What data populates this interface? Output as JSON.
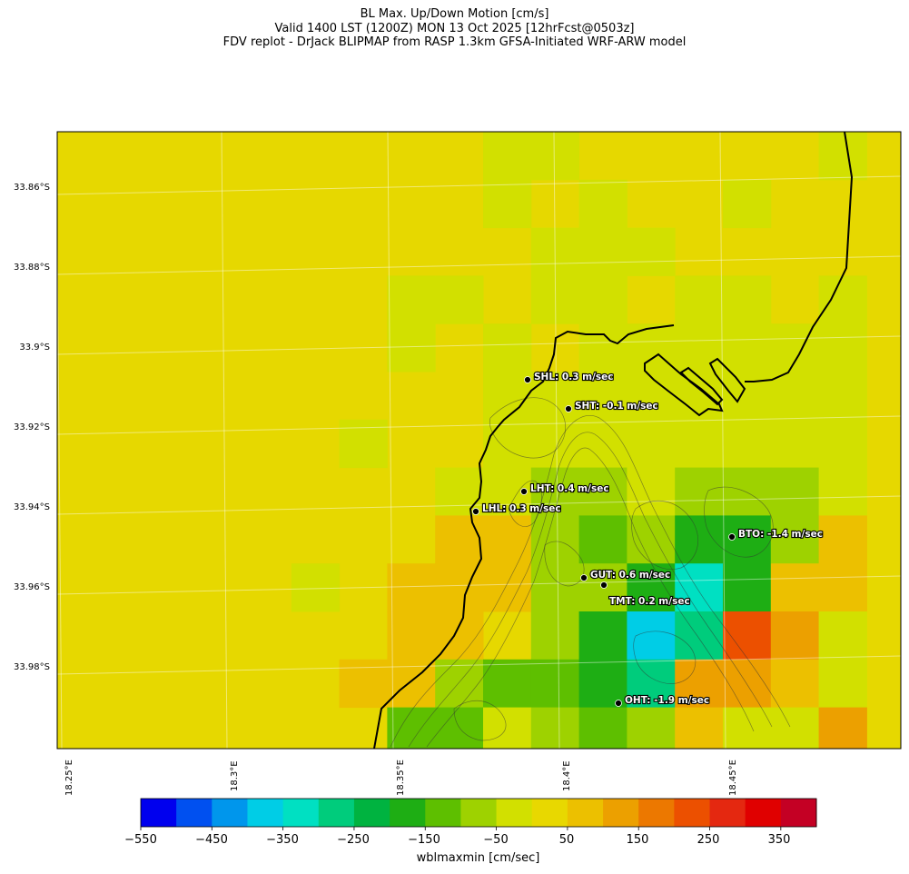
{
  "title": {
    "line1": "BL Max. Up/Down Motion [cm/s]",
    "line2": "Valid 1400 LST (1200Z) MON 13 Oct 2025 [12hrFcst@0503z]",
    "line3": "FDV replot - DrJack BLIPMAP from RASP 1.3km GFSA-Initiated WRF-ARW model"
  },
  "latitude_labels": [
    "33.86°S",
    "33.88°S",
    "33.9°S",
    "33.92°S",
    "33.94°S",
    "33.96°S",
    "33.98°S"
  ],
  "longitude_labels": [
    "18.25°E",
    "18.3°E",
    "18.35°E",
    "18.4°E",
    "18.45°E"
  ],
  "stations": [
    {
      "id": "SHL",
      "label": "SHL: 0.3 m/sec"
    },
    {
      "id": "SHT",
      "label": "SHT: -0.1 m/sec"
    },
    {
      "id": "LHT",
      "label": "LHT: 0.4 m/sec"
    },
    {
      "id": "LHL",
      "label": "LHL: 0.3 m/sec"
    },
    {
      "id": "BTO",
      "label": "BTO: -1.4 m/sec"
    },
    {
      "id": "GUT",
      "label": "GUT: 0.6 m/sec"
    },
    {
      "id": "TMT",
      "label": "TMT: 0.2 m/sec"
    },
    {
      "id": "OHT",
      "label": "OHT: -1.9 m/sec"
    }
  ],
  "colorbar": {
    "label": "wblmaxmin [cm/sec]",
    "tick_labels": [
      "−550",
      "−450",
      "−350",
      "−250",
      "−150",
      "−50",
      "50",
      "150",
      "250",
      "350"
    ],
    "colors": [
      "#0000ee",
      "#0050f0",
      "#0096ec",
      "#00cde6",
      "#00e0c2",
      "#00cc7c",
      "#00b340",
      "#1eae14",
      "#5ebf00",
      "#9ed200",
      "#d2e000",
      "#e8d800",
      "#ecc000",
      "#eca000",
      "#ec7800",
      "#ec5000",
      "#e42810",
      "#e00000",
      "#c40024"
    ]
  },
  "map": {
    "background_color": "#e6d800",
    "cells": [
      {
        "row": 0,
        "col": 10,
        "color": "#d2e000"
      },
      {
        "row": 0,
        "col": 11,
        "color": "#d2e000"
      },
      {
        "row": 0,
        "col": 17,
        "color": "#d2e000"
      },
      {
        "row": 1,
        "col": 10,
        "color": "#d2e000"
      },
      {
        "row": 1,
        "col": 12,
        "color": "#d2e000"
      },
      {
        "row": 1,
        "col": 15,
        "color": "#d2e000"
      },
      {
        "row": 2,
        "col": 11,
        "color": "#d2e000"
      },
      {
        "row": 2,
        "col": 12,
        "color": "#d2e000"
      },
      {
        "row": 2,
        "col": 13,
        "color": "#d2e000"
      },
      {
        "row": 3,
        "col": 8,
        "color": "#d2e000"
      },
      {
        "row": 3,
        "col": 9,
        "color": "#d2e000"
      },
      {
        "row": 3,
        "col": 11,
        "color": "#d2e000"
      },
      {
        "row": 3,
        "col": 12,
        "color": "#d2e000"
      },
      {
        "row": 3,
        "col": 14,
        "color": "#d2e000"
      },
      {
        "row": 3,
        "col": 15,
        "color": "#d2e000"
      },
      {
        "row": 3,
        "col": 17,
        "color": "#d2e000"
      },
      {
        "row": 4,
        "col": 8,
        "color": "#d2e000"
      },
      {
        "row": 4,
        "col": 10,
        "color": "#d2e000"
      },
      {
        "row": 4,
        "col": 12,
        "color": "#d2e000"
      },
      {
        "row": 4,
        "col": 13,
        "color": "#d2e000"
      },
      {
        "row": 4,
        "col": 14,
        "color": "#d2e000"
      },
      {
        "row": 4,
        "col": 15,
        "color": "#d2e000"
      },
      {
        "row": 4,
        "col": 16,
        "color": "#d2e000"
      },
      {
        "row": 4,
        "col": 17,
        "color": "#d2e000"
      },
      {
        "row": 5,
        "col": 10,
        "color": "#d2e000"
      },
      {
        "row": 5,
        "col": 11,
        "color": "#d2e000"
      },
      {
        "row": 5,
        "col": 12,
        "color": "#d2e000"
      },
      {
        "row": 5,
        "col": 13,
        "color": "#d2e000"
      },
      {
        "row": 5,
        "col": 14,
        "color": "#d2e000"
      },
      {
        "row": 5,
        "col": 15,
        "color": "#d2e000"
      },
      {
        "row": 5,
        "col": 16,
        "color": "#d2e000"
      },
      {
        "row": 5,
        "col": 17,
        "color": "#d2e000"
      },
      {
        "row": 6,
        "col": 7,
        "color": "#d2e000"
      },
      {
        "row": 6,
        "col": 10,
        "color": "#d2e000"
      },
      {
        "row": 6,
        "col": 11,
        "color": "#d2e000"
      },
      {
        "row": 6,
        "col": 12,
        "color": "#d2e000"
      },
      {
        "row": 6,
        "col": 13,
        "color": "#d2e000"
      },
      {
        "row": 6,
        "col": 14,
        "color": "#d2e000"
      },
      {
        "row": 6,
        "col": 15,
        "color": "#d2e000"
      },
      {
        "row": 6,
        "col": 16,
        "color": "#d2e000"
      },
      {
        "row": 6,
        "col": 17,
        "color": "#d2e000"
      },
      {
        "row": 7,
        "col": 9,
        "color": "#d2e000"
      },
      {
        "row": 7,
        "col": 10,
        "color": "#d2e000"
      },
      {
        "row": 7,
        "col": 11,
        "color": "#9ed200"
      },
      {
        "row": 7,
        "col": 12,
        "color": "#9ed200"
      },
      {
        "row": 7,
        "col": 13,
        "color": "#d2e000"
      },
      {
        "row": 7,
        "col": 14,
        "color": "#9ed200"
      },
      {
        "row": 7,
        "col": 15,
        "color": "#9ed200"
      },
      {
        "row": 7,
        "col": 16,
        "color": "#9ed200"
      },
      {
        "row": 7,
        "col": 17,
        "color": "#d2e000"
      },
      {
        "row": 8,
        "col": 9,
        "color": "#ecc000"
      },
      {
        "row": 8,
        "col": 10,
        "color": "#ecc000"
      },
      {
        "row": 8,
        "col": 11,
        "color": "#9ed200"
      },
      {
        "row": 8,
        "col": 12,
        "color": "#5ebf00"
      },
      {
        "row": 8,
        "col": 13,
        "color": "#9ed200"
      },
      {
        "row": 8,
        "col": 14,
        "color": "#1eae14"
      },
      {
        "row": 8,
        "col": 15,
        "color": "#1eae14"
      },
      {
        "row": 8,
        "col": 16,
        "color": "#9ed200"
      },
      {
        "row": 8,
        "col": 17,
        "color": "#ecc000"
      },
      {
        "row": 9,
        "col": 6,
        "color": "#d2e000"
      },
      {
        "row": 9,
        "col": 8,
        "color": "#ecc000"
      },
      {
        "row": 9,
        "col": 9,
        "color": "#ecc000"
      },
      {
        "row": 9,
        "col": 10,
        "color": "#ecc000"
      },
      {
        "row": 9,
        "col": 11,
        "color": "#9ed200"
      },
      {
        "row": 9,
        "col": 12,
        "color": "#9ed200"
      },
      {
        "row": 9,
        "col": 13,
        "color": "#1eae14"
      },
      {
        "row": 9,
        "col": 14,
        "color": "#00e0c2"
      },
      {
        "row": 9,
        "col": 15,
        "color": "#1eae14"
      },
      {
        "row": 9,
        "col": 16,
        "color": "#ecc000"
      },
      {
        "row": 9,
        "col": 17,
        "color": "#ecc000"
      },
      {
        "row": 10,
        "col": 8,
        "color": "#ecc000"
      },
      {
        "row": 10,
        "col": 9,
        "color": "#ecc000"
      },
      {
        "row": 10,
        "col": 11,
        "color": "#9ed200"
      },
      {
        "row": 10,
        "col": 12,
        "color": "#1eae14"
      },
      {
        "row": 10,
        "col": 13,
        "color": "#00cde6"
      },
      {
        "row": 10,
        "col": 14,
        "color": "#00cc7c"
      },
      {
        "row": 10,
        "col": 15,
        "color": "#ec5000"
      },
      {
        "row": 10,
        "col": 16,
        "color": "#eca000"
      },
      {
        "row": 10,
        "col": 17,
        "color": "#d2e000"
      },
      {
        "row": 11,
        "col": 7,
        "color": "#ecc000"
      },
      {
        "row": 11,
        "col": 8,
        "color": "#ecc000"
      },
      {
        "row": 11,
        "col": 9,
        "color": "#9ed200"
      },
      {
        "row": 11,
        "col": 10,
        "color": "#5ebf00"
      },
      {
        "row": 11,
        "col": 11,
        "color": "#5ebf00"
      },
      {
        "row": 11,
        "col": 12,
        "color": "#1eae14"
      },
      {
        "row": 11,
        "col": 13,
        "color": "#00cc7c"
      },
      {
        "row": 11,
        "col": 14,
        "color": "#eca000"
      },
      {
        "row": 11,
        "col": 15,
        "color": "#eca000"
      },
      {
        "row": 11,
        "col": 16,
        "color": "#ecc000"
      },
      {
        "row": 11,
        "col": 17,
        "color": "#d2e000"
      },
      {
        "row": 12,
        "col": 8,
        "color": "#5ebf00"
      },
      {
        "row": 12,
        "col": 9,
        "color": "#5ebf00"
      },
      {
        "row": 12,
        "col": 10,
        "color": "#d2e000"
      },
      {
        "row": 12,
        "col": 11,
        "color": "#9ed200"
      },
      {
        "row": 12,
        "col": 12,
        "color": "#5ebf00"
      },
      {
        "row": 12,
        "col": 13,
        "color": "#9ed200"
      },
      {
        "row": 12,
        "col": 14,
        "color": "#ecc000"
      },
      {
        "row": 12,
        "col": 15,
        "color": "#d2e000"
      },
      {
        "row": 12,
        "col": 16,
        "color": "#d2e000"
      },
      {
        "row": 12,
        "col": 17,
        "color": "#eca000"
      }
    ]
  }
}
